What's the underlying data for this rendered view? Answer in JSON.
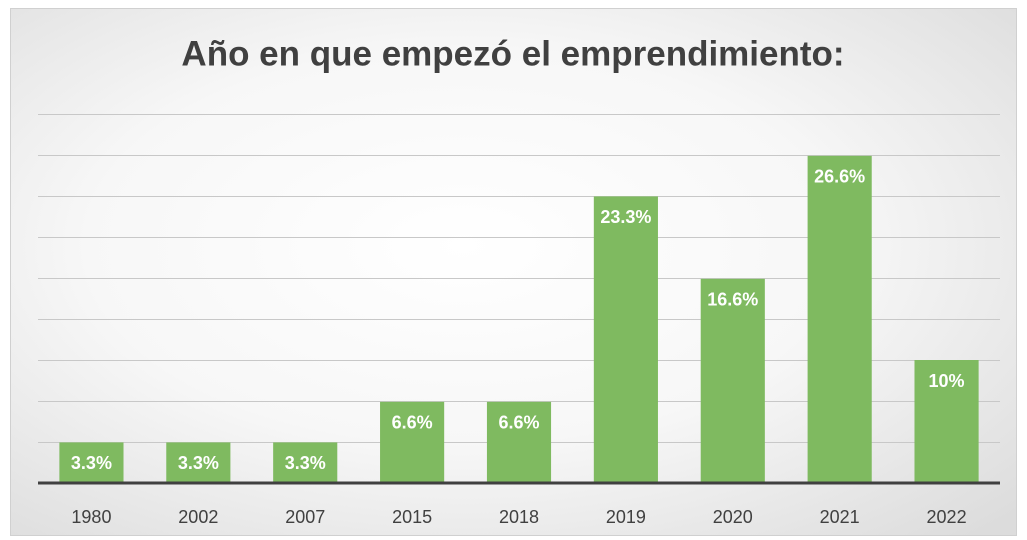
{
  "chart_data": {
    "type": "bar",
    "title": "Año en que empezó el emprendimiento:",
    "categories": [
      "1980",
      "2002",
      "2007",
      "2015",
      "2018",
      "2019",
      "2020",
      "2021",
      "2022"
    ],
    "values": [
      3.3,
      3.3,
      3.3,
      6.6,
      6.6,
      23.3,
      16.6,
      26.6,
      10
    ],
    "value_labels": [
      "3.3%",
      "3.3%",
      "3.3%",
      "6.6%",
      "6.6%",
      "23.3%",
      "16.6%",
      "26.6%",
      "10%"
    ],
    "color": "#7fba60",
    "ylim": [
      0,
      30
    ],
    "yticks": [
      0,
      3.33,
      6.67,
      10,
      13.33,
      16.67,
      20,
      23.33,
      26.67,
      30
    ],
    "grid": true
  }
}
